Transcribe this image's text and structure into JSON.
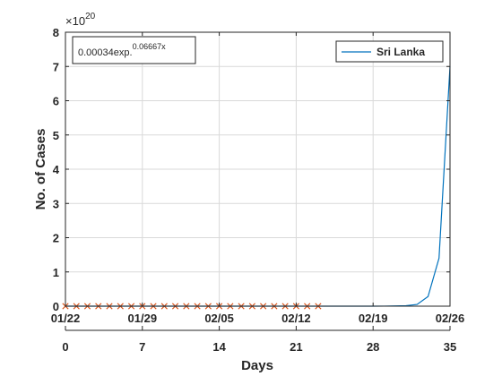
{
  "chart_data": {
    "type": "line",
    "xlabel": "Days",
    "ylabel": "No. of Cases",
    "xlim": [
      0,
      35
    ],
    "ylim": [
      0,
      8
    ],
    "y_exponent_label": "×10",
    "y_exponent_power": "20",
    "x_ticks": [
      0,
      7,
      14,
      21,
      28,
      35
    ],
    "x_tick_labels": [
      "0",
      "7",
      "14",
      "21",
      "28",
      "35"
    ],
    "date_ticks": [
      0,
      7,
      14,
      21,
      28,
      35
    ],
    "date_tick_labels": [
      "01/22",
      "01/29",
      "02/05",
      "02/12",
      "02/19",
      "02/26"
    ],
    "y_ticks": [
      0,
      1,
      2,
      3,
      4,
      5,
      6,
      7,
      8
    ],
    "y_tick_labels": [
      "0",
      "1",
      "2",
      "3",
      "4",
      "5",
      "6",
      "7",
      "8"
    ],
    "grid": true,
    "legend_position": "top-right",
    "annotation": {
      "base": "0.00034exp.",
      "power": "0.06667x"
    },
    "series": [
      {
        "name": "Sri Lanka",
        "color": "#0072bd",
        "x": [
          0,
          28,
          29,
          30,
          31,
          32,
          33,
          34,
          35
        ],
        "y": [
          0,
          0,
          0.002,
          0.006,
          0.015,
          0.05,
          0.28,
          1.4,
          7.0
        ]
      },
      {
        "name": "",
        "marker": "x",
        "color": "#d95319",
        "x": [
          0,
          1,
          2,
          3,
          4,
          5,
          6,
          7,
          8,
          9,
          10,
          11,
          12,
          13,
          14,
          15,
          16,
          17,
          18,
          19,
          20,
          21,
          22,
          23
        ],
        "y": [
          0,
          0,
          0,
          0,
          0,
          0,
          0,
          0,
          0,
          0,
          0,
          0,
          0,
          0,
          0,
          0,
          0,
          0,
          0,
          0,
          0,
          0,
          0,
          0
        ]
      }
    ]
  }
}
